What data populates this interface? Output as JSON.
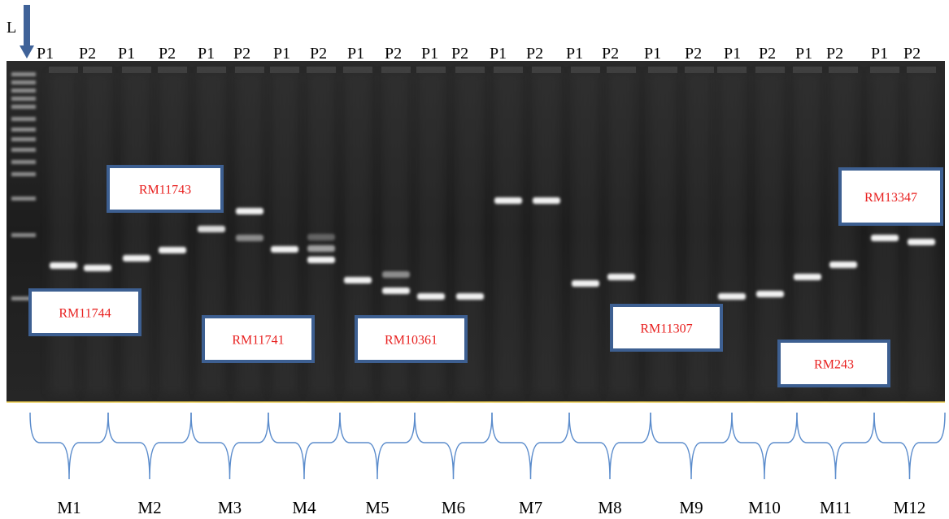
{
  "ladder_label": "L",
  "lane_labels": [
    [
      "P1",
      "P2"
    ],
    [
      "P1",
      "P2"
    ],
    [
      "P1",
      "P2"
    ],
    [
      "P1",
      "P2"
    ],
    [
      "P1",
      "P2"
    ],
    [
      "P1",
      "P2"
    ],
    [
      "P1",
      "P2"
    ],
    [
      "P1",
      "P2"
    ],
    [
      "P1",
      "P2"
    ],
    [
      "P1",
      "P2"
    ],
    [
      "P1",
      "P2"
    ],
    [
      "P1",
      "P2"
    ]
  ],
  "primer_labels": [
    "RM11744",
    "RM11743",
    "RM11741",
    "RM10361",
    "RM11307",
    "RM243",
    "RM13347"
  ],
  "markers": [
    "M1",
    "M2",
    "M3",
    "M4",
    "M5",
    "M6",
    "M7",
    "M8",
    "M9",
    "M10",
    "M11",
    "M12"
  ]
}
